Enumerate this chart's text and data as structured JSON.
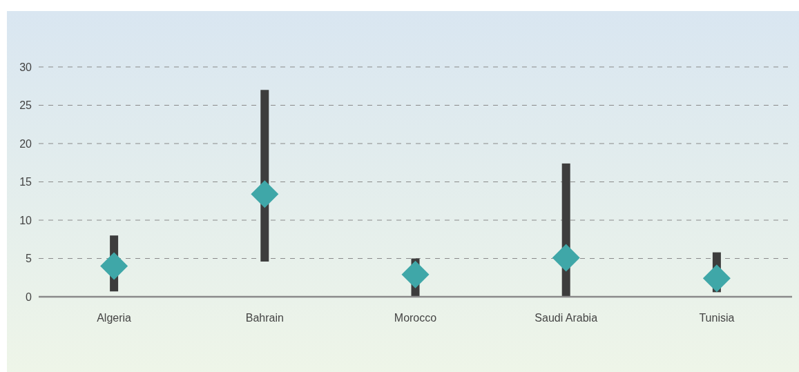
{
  "chart_data": {
    "type": "bar",
    "categories": [
      "Algeria",
      "Bahrain",
      "Morocco",
      "Saudi Arabia",
      "Tunisia"
    ],
    "series": [
      {
        "color": "#3d3d3d",
        "base": [
          0.7,
          4.6,
          0,
          0,
          0.6
        ],
        "values": [
          7.3,
          22.4,
          5.0,
          17.4,
          5.2
        ]
      },
      {
        "type": "scatter",
        "color": "#3fa7a8",
        "marker": "diamond",
        "x": [
          "Algeria",
          "Bahrain",
          "Morocco",
          "Saudi Arabia",
          "Tunisia"
        ],
        "values": [
          4.0,
          13.4,
          2.9,
          5.1,
          2.4
        ]
      }
    ],
    "ylim": [
      0,
      30
    ],
    "yticks": [
      0,
      5,
      10,
      15,
      20,
      25,
      30
    ],
    "grid": "y"
  }
}
